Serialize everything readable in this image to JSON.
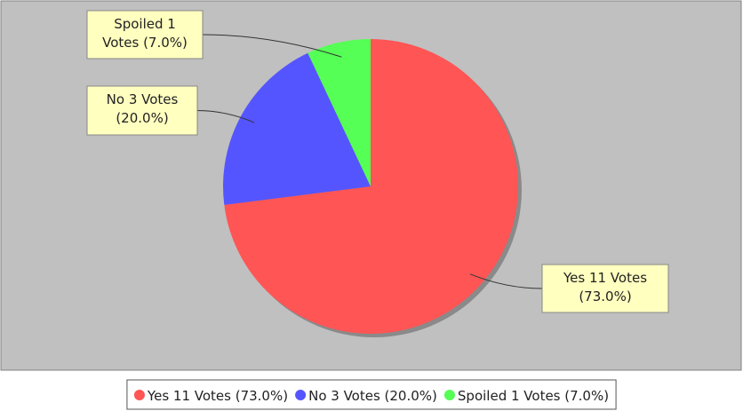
{
  "chart_data": {
    "type": "pie",
    "categories": [
      "Yes 11 Votes (73.0%)",
      "No 3 Votes (20.0%)",
      "Spoiled 1 Votes (7.0%)"
    ],
    "values": [
      73,
      20,
      7
    ],
    "value_labels": [
      [
        "Yes 11 Votes",
        "(73.0%)"
      ],
      [
        "No 3 Votes",
        "(20.0%)"
      ],
      [
        "Spoiled 1",
        "Votes (7.0%)"
      ]
    ],
    "colors": [
      "#ff5555",
      "#5555ff",
      "#55ff55"
    ],
    "legend": "bottom"
  }
}
